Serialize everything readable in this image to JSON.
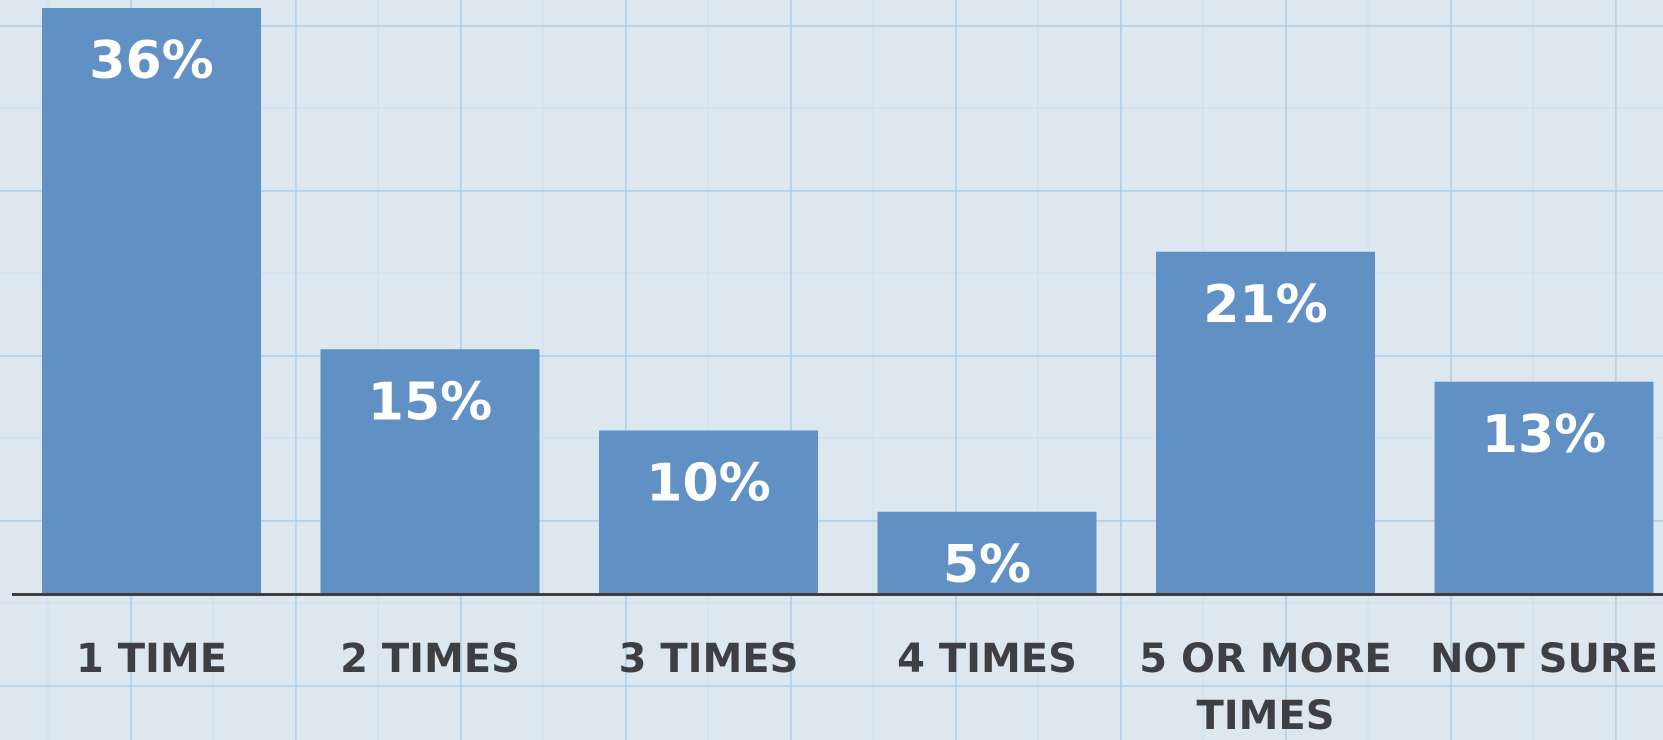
{
  "colors": {
    "bar": "#6190c5",
    "bar_label": "#ffffff",
    "axis_line": "#3d3f42",
    "category_text": "#3d3f42",
    "background": "#dce7f0",
    "grid": "#a9cbe6"
  },
  "chart_data": {
    "type": "bar",
    "categories": [
      "1 TIME",
      "2 TIMES",
      "3 TIMES",
      "4 TIMES",
      "5 OR MORE TIMES",
      "NOT SURE"
    ],
    "category_lines": [
      [
        "1 TIME"
      ],
      [
        "2 TIMES"
      ],
      [
        "3 TIMES"
      ],
      [
        "4 TIMES"
      ],
      [
        "5 OR MORE",
        "TIMES"
      ],
      [
        "NOT SURE"
      ]
    ],
    "values": [
      36,
      15,
      10,
      5,
      21,
      13
    ],
    "value_labels": [
      "36%",
      "15%",
      "10%",
      "5%",
      "21%",
      "13%"
    ],
    "title": "",
    "xlabel": "",
    "ylabel": "",
    "ylim": [
      0,
      36
    ],
    "grid": true,
    "legend": "none"
  }
}
